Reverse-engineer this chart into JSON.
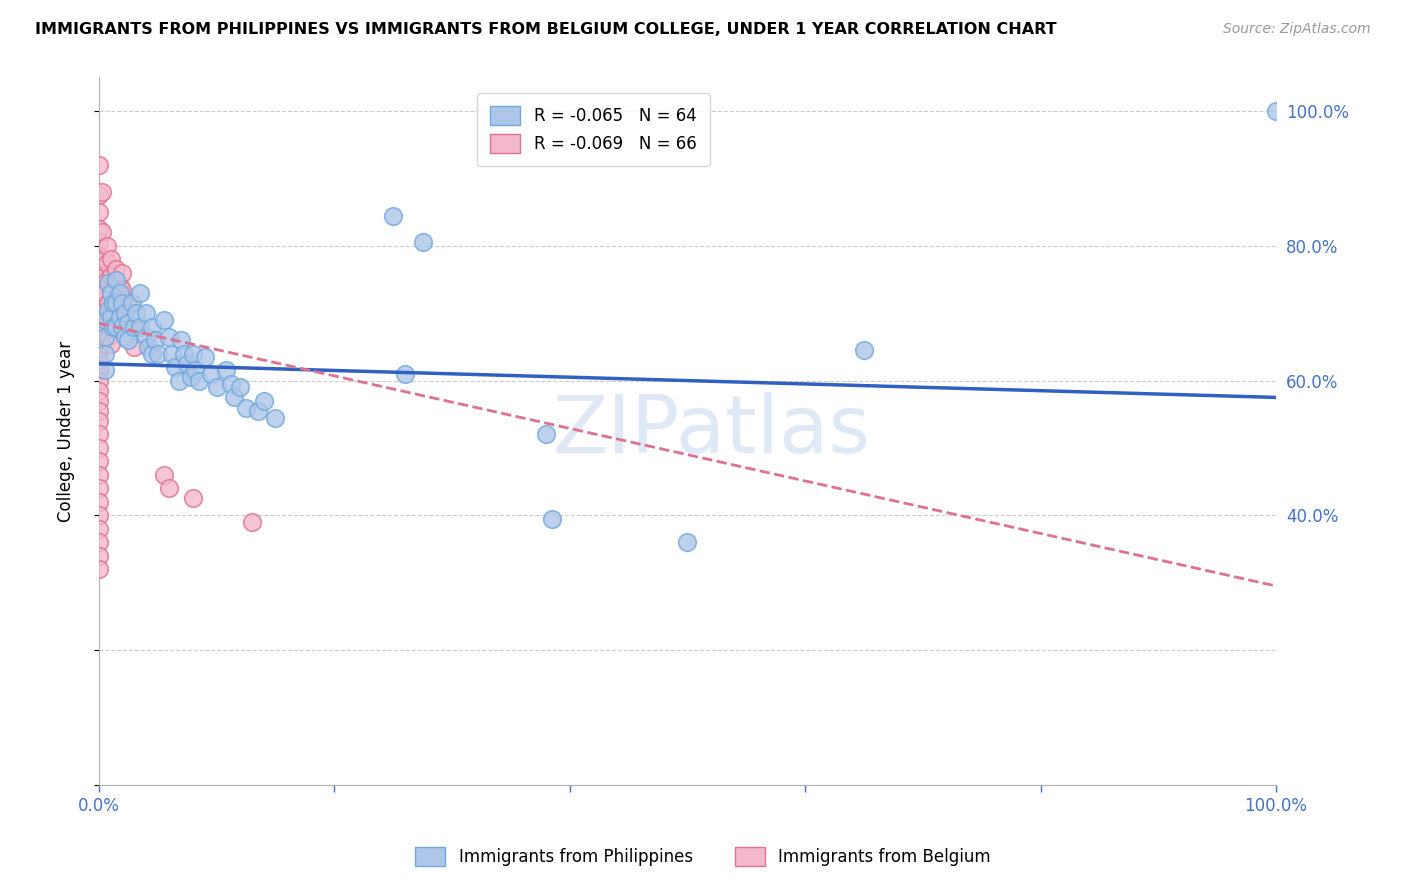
{
  "title": "IMMIGRANTS FROM PHILIPPINES VS IMMIGRANTS FROM BELGIUM COLLEGE, UNDER 1 YEAR CORRELATION CHART",
  "source": "Source: ZipAtlas.com",
  "ylabel": "College, Under 1 year",
  "legend_entries": [
    {
      "label": "R = -0.065   N = 64",
      "color": "#aec6e8",
      "edge": "#6fa8dc"
    },
    {
      "label": "R = -0.069   N = 66",
      "color": "#f4b8cc",
      "edge": "#e07090"
    }
  ],
  "legend_labels_bottom": [
    "Immigrants from Philippines",
    "Immigrants from Belgium"
  ],
  "watermark": "ZIPatlas",
  "axis_label_color": "#4472c4",
  "tick_color": "#4472c4",
  "philippines_color": "#aec6e8",
  "philippines_edge": "#6fa8dc",
  "belgium_color": "#f4b8cc",
  "belgium_edge": "#e07090",
  "philippines_line_color": "#3060c0",
  "belgium_line_color": "#e07090",
  "philippines_line": [
    0.0,
    1.0,
    0.625,
    0.575
  ],
  "belgium_line": [
    0.0,
    1.0,
    0.685,
    0.295
  ],
  "philippines_scatter": [
    [
      0.005,
      0.69
    ],
    [
      0.005,
      0.665
    ],
    [
      0.005,
      0.64
    ],
    [
      0.005,
      0.615
    ],
    [
      0.008,
      0.745
    ],
    [
      0.008,
      0.705
    ],
    [
      0.01,
      0.73
    ],
    [
      0.01,
      0.695
    ],
    [
      0.012,
      0.715
    ],
    [
      0.012,
      0.68
    ],
    [
      0.015,
      0.75
    ],
    [
      0.015,
      0.715
    ],
    [
      0.015,
      0.68
    ],
    [
      0.018,
      0.73
    ],
    [
      0.018,
      0.695
    ],
    [
      0.02,
      0.715
    ],
    [
      0.02,
      0.68
    ],
    [
      0.022,
      0.7
    ],
    [
      0.022,
      0.665
    ],
    [
      0.025,
      0.685
    ],
    [
      0.025,
      0.66
    ],
    [
      0.028,
      0.715
    ],
    [
      0.03,
      0.68
    ],
    [
      0.032,
      0.7
    ],
    [
      0.035,
      0.73
    ],
    [
      0.035,
      0.68
    ],
    [
      0.04,
      0.7
    ],
    [
      0.04,
      0.665
    ],
    [
      0.042,
      0.65
    ],
    [
      0.045,
      0.68
    ],
    [
      0.045,
      0.64
    ],
    [
      0.048,
      0.66
    ],
    [
      0.05,
      0.64
    ],
    [
      0.055,
      0.69
    ],
    [
      0.06,
      0.665
    ],
    [
      0.062,
      0.64
    ],
    [
      0.065,
      0.62
    ],
    [
      0.068,
      0.6
    ],
    [
      0.07,
      0.66
    ],
    [
      0.072,
      0.64
    ],
    [
      0.075,
      0.625
    ],
    [
      0.078,
      0.605
    ],
    [
      0.08,
      0.64
    ],
    [
      0.082,
      0.615
    ],
    [
      0.085,
      0.6
    ],
    [
      0.09,
      0.635
    ],
    [
      0.095,
      0.61
    ],
    [
      0.1,
      0.59
    ],
    [
      0.108,
      0.615
    ],
    [
      0.112,
      0.595
    ],
    [
      0.115,
      0.575
    ],
    [
      0.12,
      0.59
    ],
    [
      0.125,
      0.56
    ],
    [
      0.135,
      0.555
    ],
    [
      0.14,
      0.57
    ],
    [
      0.15,
      0.545
    ],
    [
      0.25,
      0.845
    ],
    [
      0.26,
      0.61
    ],
    [
      0.275,
      0.805
    ],
    [
      0.38,
      0.52
    ],
    [
      0.385,
      0.395
    ],
    [
      0.5,
      0.36
    ],
    [
      0.65,
      0.645
    ],
    [
      1.0,
      1.0
    ]
  ],
  "belgium_scatter": [
    [
      0.0,
      0.92
    ],
    [
      0.0,
      0.875
    ],
    [
      0.0,
      0.85
    ],
    [
      0.0,
      0.825
    ],
    [
      0.0,
      0.805
    ],
    [
      0.0,
      0.785
    ],
    [
      0.0,
      0.765
    ],
    [
      0.0,
      0.745
    ],
    [
      0.0,
      0.72
    ],
    [
      0.0,
      0.7
    ],
    [
      0.0,
      0.68
    ],
    [
      0.0,
      0.66
    ],
    [
      0.0,
      0.645
    ],
    [
      0.0,
      0.63
    ],
    [
      0.0,
      0.615
    ],
    [
      0.0,
      0.6
    ],
    [
      0.0,
      0.585
    ],
    [
      0.0,
      0.57
    ],
    [
      0.0,
      0.555
    ],
    [
      0.0,
      0.54
    ],
    [
      0.0,
      0.52
    ],
    [
      0.0,
      0.5
    ],
    [
      0.0,
      0.48
    ],
    [
      0.0,
      0.46
    ],
    [
      0.0,
      0.44
    ],
    [
      0.0,
      0.42
    ],
    [
      0.0,
      0.4
    ],
    [
      0.0,
      0.38
    ],
    [
      0.0,
      0.36
    ],
    [
      0.0,
      0.34
    ],
    [
      0.0,
      0.32
    ],
    [
      0.003,
      0.88
    ],
    [
      0.003,
      0.82
    ],
    [
      0.005,
      0.78
    ],
    [
      0.005,
      0.755
    ],
    [
      0.005,
      0.73
    ],
    [
      0.007,
      0.8
    ],
    [
      0.007,
      0.775
    ],
    [
      0.007,
      0.75
    ],
    [
      0.008,
      0.715
    ],
    [
      0.008,
      0.69
    ],
    [
      0.008,
      0.665
    ],
    [
      0.01,
      0.78
    ],
    [
      0.01,
      0.755
    ],
    [
      0.01,
      0.73
    ],
    [
      0.01,
      0.705
    ],
    [
      0.01,
      0.68
    ],
    [
      0.01,
      0.655
    ],
    [
      0.012,
      0.71
    ],
    [
      0.012,
      0.685
    ],
    [
      0.015,
      0.765
    ],
    [
      0.015,
      0.74
    ],
    [
      0.015,
      0.715
    ],
    [
      0.015,
      0.69
    ],
    [
      0.018,
      0.74
    ],
    [
      0.018,
      0.715
    ],
    [
      0.02,
      0.76
    ],
    [
      0.02,
      0.735
    ],
    [
      0.022,
      0.68
    ],
    [
      0.025,
      0.71
    ],
    [
      0.028,
      0.68
    ],
    [
      0.03,
      0.65
    ],
    [
      0.055,
      0.46
    ],
    [
      0.06,
      0.44
    ],
    [
      0.08,
      0.425
    ],
    [
      0.13,
      0.39
    ]
  ],
  "xlim": [
    0.0,
    1.0
  ],
  "ylim": [
    0.0,
    1.05
  ],
  "yticks": [
    0.0,
    0.2,
    0.4,
    0.6,
    0.8,
    1.0
  ],
  "right_yticks": [
    0.4,
    0.6,
    0.8,
    1.0
  ],
  "right_ytick_labels": [
    "40.0%",
    "60.0%",
    "80.0%",
    "100.0%"
  ],
  "xticks": [
    0.0,
    0.2,
    0.4,
    0.6,
    0.8,
    1.0
  ],
  "xtick_labels": [
    "0.0%",
    "",
    "",
    "",
    "",
    "100.0%"
  ]
}
